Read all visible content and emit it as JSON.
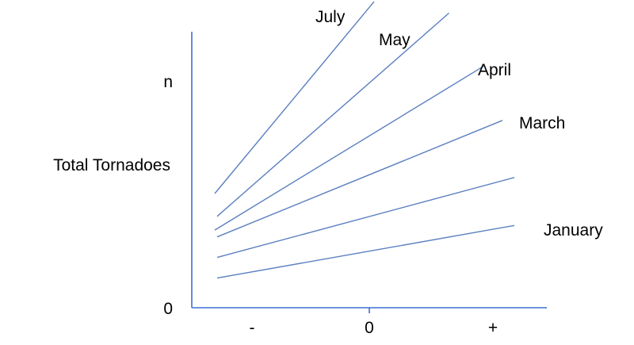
{
  "chart_data": {
    "type": "line",
    "title": "",
    "xlabel": "",
    "ylabel": "Total Tornadoes",
    "x_ticks": [
      "-",
      "0",
      "+"
    ],
    "y_ticks": [
      "0",
      "n"
    ],
    "xlim": [
      -1.5,
      1.3
    ],
    "ylim": [
      0,
      1.25
    ],
    "grid": false,
    "line_color": "#5b7fc0",
    "axis_color": "#3f6fd0",
    "series": [
      {
        "name": "January",
        "x": [
          -1.28,
          1.22
        ],
        "y": [
          0.13,
          0.36
        ]
      },
      {
        "name": "",
        "x": [
          -1.28,
          1.22
        ],
        "y": [
          0.22,
          0.57
        ]
      },
      {
        "name": "March",
        "x": [
          -1.28,
          1.12
        ],
        "y": [
          0.31,
          0.82
        ]
      },
      {
        "name": "April",
        "x": [
          -1.3,
          0.97
        ],
        "y": [
          0.34,
          1.06
        ]
      },
      {
        "name": "May",
        "x": [
          -1.28,
          0.67
        ],
        "y": [
          0.4,
          1.29
        ]
      },
      {
        "name": "July",
        "x": [
          -1.3,
          0.04
        ],
        "y": [
          0.5,
          1.34
        ]
      }
    ]
  }
}
